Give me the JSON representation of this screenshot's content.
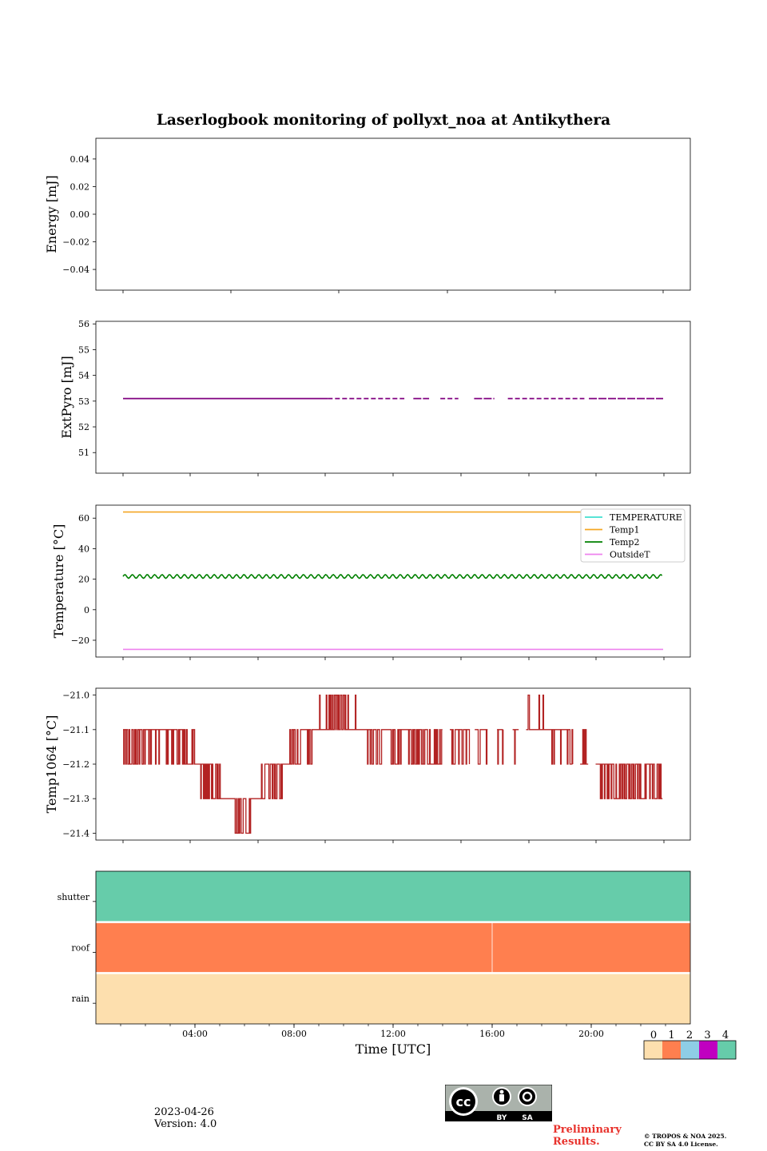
{
  "title": "Laserlogbook monitoring of pollyxt_noa at Antikythera",
  "footer": {
    "date": "2023-04-26",
    "version": "Version: 4.0",
    "preliminary": [
      "Preliminary",
      "Results."
    ],
    "copyright": [
      "© TROPOS & NOA 2025.",
      "CC BY SA 4.0 License."
    ],
    "license_badge": {
      "by": "BY",
      "sa": "SA",
      "cc": "cc"
    }
  },
  "colors": {
    "temperature": "#40e0d0",
    "temp1": "#f5a623",
    "temp2": "#008000",
    "outsideT": "#ee82ee",
    "extpyro": "#800080",
    "temp1064": "#b22222"
  },
  "chart_data": [
    {
      "type": "line",
      "ylabel": "Energy [mJ]",
      "yticks": [
        "0.04",
        "0.02",
        "0.00",
        "−0.02",
        "−0.04"
      ],
      "ytick_values": [
        0.04,
        0.02,
        0.0,
        -0.02,
        -0.04
      ],
      "ylim": [
        -0.055,
        0.055
      ],
      "series": []
    },
    {
      "type": "line",
      "ylabel": "ExtPyro [mJ]",
      "yticks": [
        "56",
        "55",
        "54",
        "53",
        "52",
        "51"
      ],
      "ytick_values": [
        56,
        55,
        54,
        53,
        52,
        51
      ],
      "ylim": [
        50.2,
        56.1
      ],
      "series": [
        {
          "color_key": "extpyro",
          "value": 53.1,
          "segments": [
            [
              0.0,
              9.1
            ],
            [
              9.1,
              12.5
            ],
            [
              12.9,
              13.6
            ],
            [
              14.1,
              14.9
            ],
            [
              15.6,
              16.5
            ],
            [
              17.1,
              20.5
            ],
            [
              20.7,
              24.0
            ]
          ]
        }
      ]
    },
    {
      "type": "line",
      "ylabel": "Temperature [°C]",
      "yticks": [
        "60",
        "40",
        "20",
        "0",
        "−20"
      ],
      "ytick_values": [
        60,
        40,
        20,
        0,
        -20
      ],
      "ylim": [
        -31,
        68.5
      ],
      "legend": [
        "TEMPERATURE",
        "Temp1",
        "Temp2",
        "OutsideT"
      ],
      "legend_position": "top-right",
      "series": [
        {
          "name": "TEMPERATURE",
          "color_key": "temperature",
          "points": []
        },
        {
          "name": "Temp1",
          "color_key": "temp1",
          "value": 64.0,
          "range": [
            0.0,
            20.7
          ]
        },
        {
          "name": "Temp2",
          "color_key": "temp2",
          "value": 21.8,
          "amplitude": 1.2,
          "range": [
            0.0,
            24.0
          ]
        },
        {
          "name": "OutsideT",
          "color_key": "outsideT",
          "value": -26.0,
          "range": [
            0.0,
            24.0
          ]
        }
      ]
    },
    {
      "type": "line",
      "ylabel": "Temp1064 [°C]",
      "yticks": [
        "−21.0",
        "−21.1",
        "−21.2",
        "−21.3",
        "−21.4"
      ],
      "ytick_values": [
        -21.0,
        -21.1,
        -21.2,
        -21.3,
        -21.4
      ],
      "ylim": [
        -21.42,
        -20.98
      ],
      "series": [
        {
          "color_key": "temp1064",
          "profile": [
            [
              0.0,
              -21.15
            ],
            [
              1.0,
              -21.12
            ],
            [
              2.0,
              -21.12
            ],
            [
              3.0,
              -21.17
            ],
            [
              3.5,
              -21.22
            ],
            [
              4.0,
              -21.26
            ],
            [
              5.0,
              -21.33
            ],
            [
              5.5,
              -21.36
            ],
            [
              6.0,
              -21.3
            ],
            [
              7.0,
              -21.22
            ],
            [
              8.0,
              -21.13
            ],
            [
              9.0,
              -21.06
            ],
            [
              10.0,
              -21.08
            ],
            [
              11.0,
              -21.12
            ],
            [
              12.0,
              -21.13
            ],
            [
              13.0,
              -21.14
            ],
            [
              14.0,
              -21.14
            ],
            [
              15.0,
              -21.13
            ],
            [
              16.0,
              -21.15
            ],
            [
              17.0,
              -21.14
            ],
            [
              18.0,
              -21.08
            ],
            [
              19.0,
              -21.1
            ],
            [
              20.0,
              -21.15
            ],
            [
              21.0,
              -21.2
            ],
            [
              22.0,
              -21.25
            ],
            [
              24.0,
              -21.25
            ]
          ],
          "gaps": [
            [
              14.2,
              14.5
            ],
            [
              15.4,
              15.6
            ],
            [
              16.2,
              16.6
            ],
            [
              16.9,
              17.3
            ],
            [
              17.6,
              17.9
            ],
            [
              20.0,
              20.3
            ],
            [
              20.7,
              21.0
            ]
          ]
        }
      ]
    },
    {
      "type": "heatmap",
      "rows": [
        "shutter",
        "roof",
        "rain"
      ],
      "row_values": [
        4,
        1,
        0
      ],
      "xlabel": "Time [UTC]",
      "xticks": [
        "04:00",
        "08:00",
        "12:00",
        "16:00",
        "20:00"
      ],
      "xtick_values": [
        4,
        8,
        12,
        16,
        20
      ],
      "xlim": [
        0,
        24
      ],
      "roof_divider_at": 16.0,
      "colorbar": {
        "ticks": [
          "0",
          "1",
          "2",
          "3",
          "4"
        ],
        "colors": [
          "#fddfae",
          "#ff7f4f",
          "#8ecde6",
          "#c000c0",
          "#66ccaa"
        ]
      }
    }
  ]
}
